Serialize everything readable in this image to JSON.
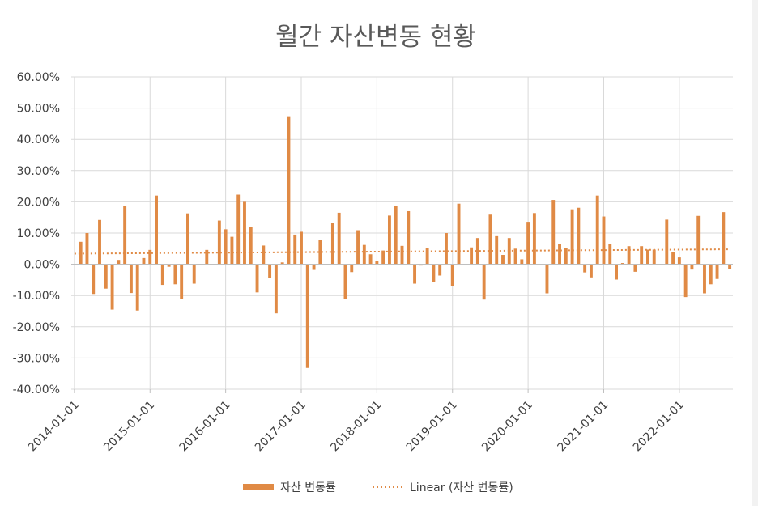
{
  "chart_data": {
    "type": "bar",
    "title": "월간 자산변동 현황",
    "xlabel": "",
    "ylabel": "",
    "ylim": [
      -0.4,
      0.6
    ],
    "yticks": [
      -0.4,
      -0.3,
      -0.2,
      -0.1,
      0.0,
      0.1,
      0.2,
      0.3,
      0.4,
      0.5,
      0.6
    ],
    "ytick_labels": [
      "-40.00%",
      "-30.00%",
      "-20.00%",
      "-10.00%",
      "0.00%",
      "10.00%",
      "20.00%",
      "30.00%",
      "40.00%",
      "50.00%",
      "60.00%"
    ],
    "x_tick_labels": [
      "2014-01-01",
      "2015-01-01",
      "2016-01-01",
      "2017-01-01",
      "2018-01-01",
      "2019-01-01",
      "2020-01-01",
      "2021-01-01",
      "2022-01-01"
    ],
    "x_start": "2014-01",
    "gridlines": "horizontal",
    "legend_position": "bottom",
    "colors": {
      "bar": "#e08a45",
      "trend": "#e08a45",
      "grid": "#d9d9d9",
      "axis": "#bfbfbf",
      "text": "#404040",
      "title": "#595959"
    },
    "series": [
      {
        "name": "자산 변동률",
        "kind": "bar",
        "values": [
          0.0,
          0.072,
          0.1,
          -0.095,
          0.142,
          -0.078,
          -0.145,
          0.014,
          0.188,
          -0.092,
          -0.148,
          0.02,
          0.046,
          0.22,
          -0.066,
          -0.008,
          -0.064,
          -0.111,
          0.163,
          -0.062,
          0.0,
          0.046,
          0.0,
          0.14,
          0.112,
          0.088,
          0.223,
          0.2,
          0.12,
          -0.09,
          0.06,
          -0.043,
          -0.157,
          0.006,
          0.474,
          0.095,
          0.104,
          -0.332,
          -0.018,
          0.078,
          0.0,
          0.132,
          0.165,
          -0.11,
          -0.025,
          0.109,
          0.062,
          0.032,
          0.01,
          0.044,
          0.156,
          0.188,
          0.059,
          0.17,
          -0.062,
          -0.004,
          0.051,
          -0.058,
          -0.036,
          0.1,
          -0.071,
          0.194,
          0.0,
          0.054,
          0.084,
          -0.113,
          0.159,
          0.09,
          0.03,
          0.084,
          0.05,
          0.016,
          0.136,
          0.164,
          0.0,
          -0.093,
          0.206,
          0.065,
          0.053,
          0.176,
          0.181,
          -0.026,
          -0.042,
          0.22,
          0.153,
          0.065,
          -0.049,
          0.004,
          0.058,
          -0.024,
          0.058,
          0.047,
          0.047,
          0.0,
          0.143,
          0.038,
          0.022,
          -0.105,
          -0.017,
          0.155,
          -0.093,
          -0.064,
          -0.047,
          0.167,
          -0.014
        ]
      },
      {
        "name": "Linear (자산 변동률)",
        "kind": "trendline",
        "start": 0.034,
        "end": 0.048
      }
    ]
  }
}
